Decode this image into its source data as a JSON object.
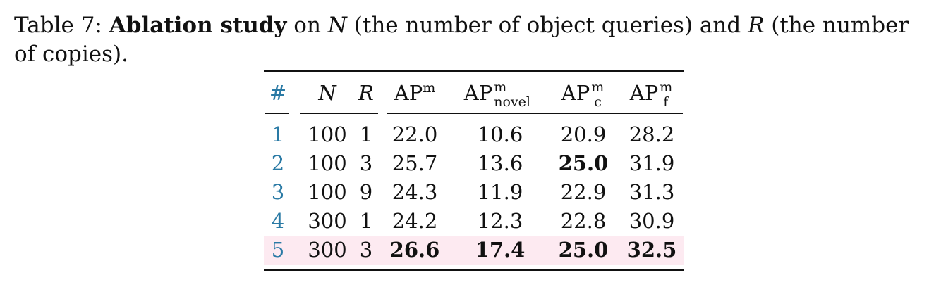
{
  "caption": {
    "label": "Table 7:",
    "bold_title": "Ablation study",
    "text_1": " on ",
    "n_symbol": "N",
    "text_2": " (the number of object queries) and ",
    "r_symbol": "R",
    "text_3": " (the number of copies)."
  },
  "table": {
    "headers": {
      "idx": "#",
      "n": "N",
      "r": "R",
      "ap_base": "AP",
      "ap_sup": "m",
      "novel_sub": "novel",
      "c_sub": "c",
      "f_sub": "f"
    },
    "rows": [
      {
        "idx": "1",
        "n": "100",
        "r": "1",
        "ap": "22.0",
        "ap_novel": "10.6",
        "ap_c": "20.9",
        "ap_f": "28.2"
      },
      {
        "idx": "2",
        "n": "100",
        "r": "3",
        "ap": "25.7",
        "ap_novel": "13.6",
        "ap_c": "25.0",
        "ap_f": "31.9"
      },
      {
        "idx": "3",
        "n": "100",
        "r": "9",
        "ap": "24.3",
        "ap_novel": "11.9",
        "ap_c": "22.9",
        "ap_f": "31.3"
      },
      {
        "idx": "4",
        "n": "300",
        "r": "1",
        "ap": "24.2",
        "ap_novel": "12.3",
        "ap_c": "22.8",
        "ap_f": "30.9"
      },
      {
        "idx": "5",
        "n": "300",
        "r": "3",
        "ap": "26.6",
        "ap_novel": "17.4",
        "ap_c": "25.0",
        "ap_f": "32.5"
      }
    ],
    "highlight_color": "#fdeaf1",
    "index_color": "#2a7aa5"
  }
}
